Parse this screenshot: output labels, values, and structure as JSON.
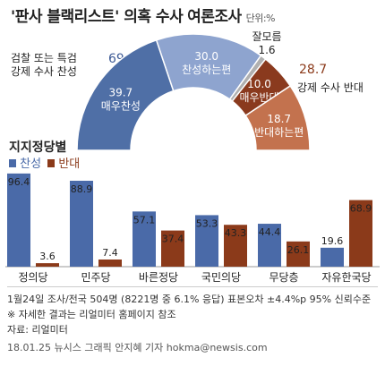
{
  "title": {
    "part1": "'판사 블랙리스트' 의혹 수사",
    "part2": "여론조사",
    "unit": "단위:%"
  },
  "donut": {
    "left_label_line1": "검찰 또는 특검",
    "left_label_line2": "강제 수사 찬성",
    "left_total": "69.7",
    "right_total": "28.7",
    "right_label": "강제 수사 반대",
    "unknown_label": "잘모름",
    "unknown_value": "1.6"
  },
  "chart_data": [
    {
      "type": "pie",
      "title": "'판사 블랙리스트' 의혹 수사 여론조사",
      "unit": "%",
      "slices": [
        {
          "label": "매우찬성",
          "value": 39.7,
          "color": "#4f6fa6"
        },
        {
          "label": "찬성하는편",
          "value": 30.0,
          "color": "#8ea4cf"
        },
        {
          "label": "잘모름",
          "value": 1.6,
          "color": "#b0b0b0"
        },
        {
          "label": "매우반대",
          "value": 10.0,
          "color": "#8a3a1e"
        },
        {
          "label": "반대하는편",
          "value": 18.7,
          "color": "#c3724e"
        }
      ]
    },
    {
      "type": "bar",
      "title": "지지정당별",
      "categories": [
        "정의당",
        "민주당",
        "바른정당",
        "국민의당",
        "무당층",
        "자유한국당"
      ],
      "series": [
        {
          "name": "찬성",
          "values": [
            96.4,
            88.9,
            57.1,
            53.3,
            44.4,
            19.6
          ],
          "color": "#4a6aa8"
        },
        {
          "name": "반대",
          "values": [
            3.6,
            7.4,
            37.4,
            43.3,
            26.1,
            68.9
          ],
          "color": "#8b3a1a"
        }
      ],
      "ylim": [
        0,
        100
      ]
    }
  ],
  "notes": {
    "line1": "1월24일 조사/전국 504명 (8221명 중 6.1% 응답) 표본오차 ±4.4%p 95% 신뢰수준",
    "line2": "※ 자세한 결과는 리얼미터 홈페이지 참조",
    "line3": "자료: 리얼미터",
    "line4": "18.01.25 뉴시스 그래픽 안지혜 기자 hokma@newsis.com"
  }
}
